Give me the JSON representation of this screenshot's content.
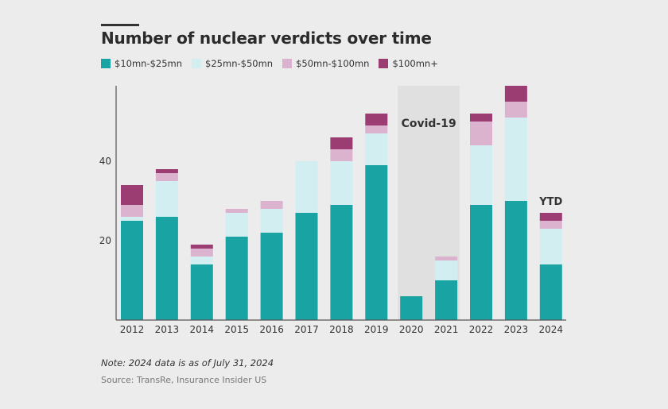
{
  "header": {
    "title": "Number of nuclear verdicts over time"
  },
  "legend": [
    {
      "label": "$10mn-$25mn",
      "color": "#1aa3a3"
    },
    {
      "label": "$25mn-$50mn",
      "color": "#d3eef0"
    },
    {
      "label": "$50mn-$100mn",
      "color": "#dcb3ce"
    },
    {
      "label": "$100mn+",
      "color": "#9b3d72"
    }
  ],
  "chart_data": {
    "type": "bar",
    "stacked": true,
    "title": "Number of nuclear verdicts over time",
    "categories": [
      "2012",
      "2013",
      "2014",
      "2015",
      "2016",
      "2017",
      "2018",
      "2019",
      "2020",
      "2021",
      "2022",
      "2023",
      "2024"
    ],
    "series": [
      {
        "name": "$10mn-$25mn",
        "color": "#1aa3a3",
        "values": [
          25,
          26,
          14,
          21,
          22,
          27,
          29,
          39,
          6,
          10,
          29,
          30,
          14
        ]
      },
      {
        "name": "$25mn-$50mn",
        "color": "#d3eef0",
        "values": [
          1,
          9,
          2,
          6,
          6,
          13,
          11,
          8,
          0,
          5,
          15,
          21,
          9
        ]
      },
      {
        "name": "$50mn-$100mn",
        "color": "#dcb3ce",
        "values": [
          3,
          2,
          2,
          1,
          2,
          0,
          3,
          2,
          0,
          1,
          6,
          4,
          2
        ]
      },
      {
        "name": "$100mn+",
        "color": "#9b3d72",
        "values": [
          5,
          1,
          1,
          0,
          0,
          0,
          3,
          3,
          0,
          0,
          2,
          4,
          2
        ]
      }
    ],
    "ylim": [
      0,
      59
    ],
    "yticks": [
      20,
      40
    ],
    "xlabel": "",
    "ylabel": "",
    "annotations": [
      {
        "text": "Covid-19",
        "categories": [
          "2020",
          "2021"
        ],
        "kind": "shaded-band"
      },
      {
        "text": "YTD",
        "category": "2024",
        "kind": "bar-label"
      }
    ]
  },
  "footer": {
    "note": "Note: 2024 data is as of July 31, 2024",
    "source": "Source: TransRe, Insurance Insider US"
  }
}
